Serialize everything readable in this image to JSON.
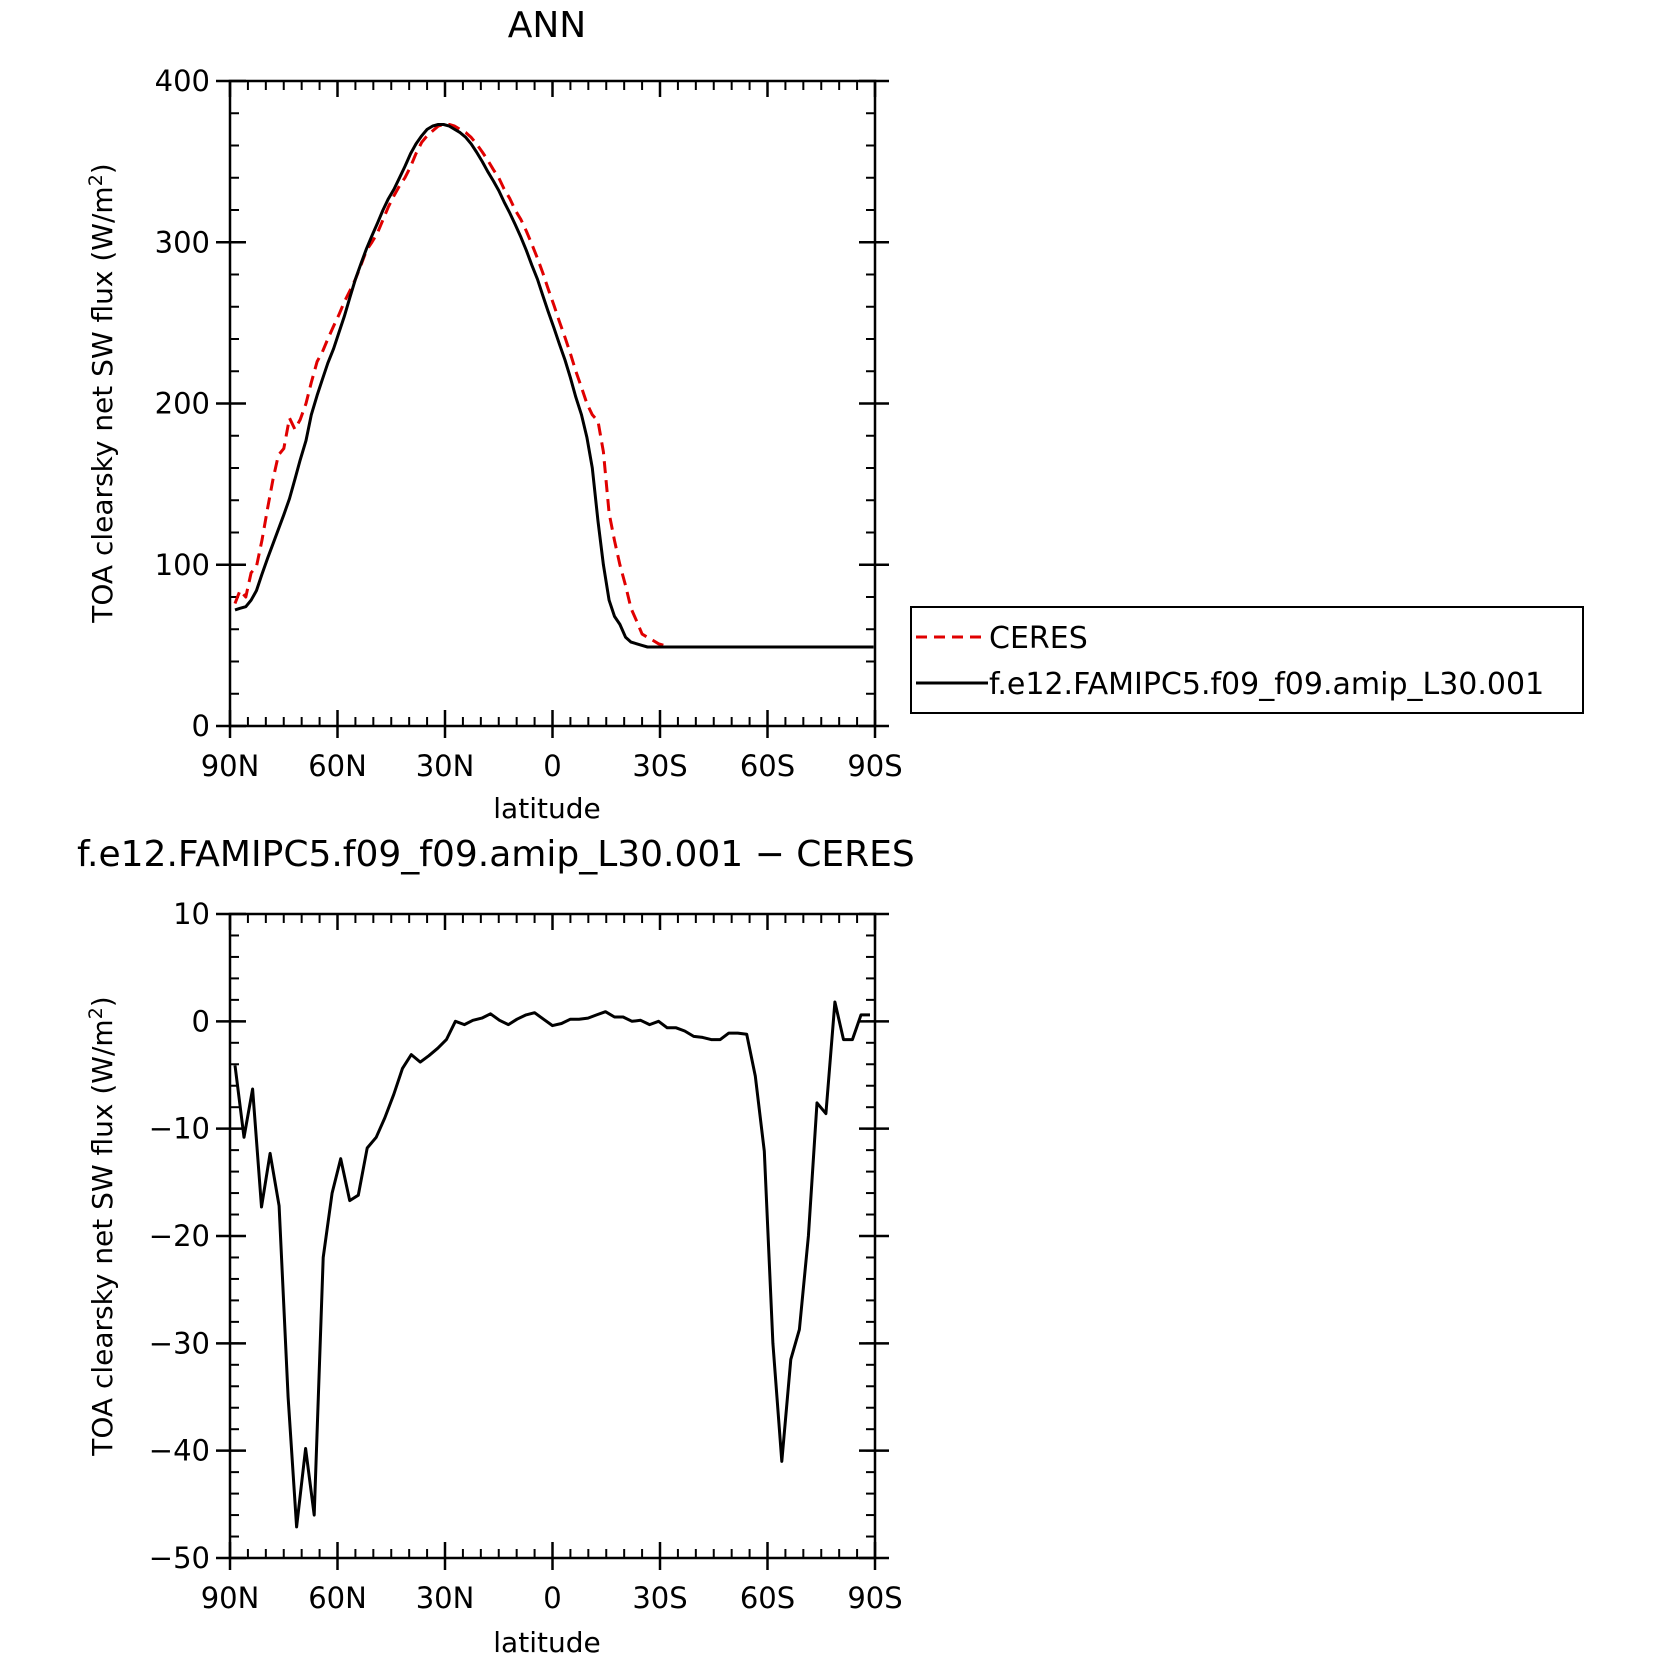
{
  "chart_data": [
    {
      "type": "line",
      "title": "ANN",
      "xlabel": "latitude",
      "ylabel_main": "TOA clearsky net SW flux (W/m",
      "ylabel_sup": "2",
      "ylabel_close": ")",
      "xlim": [
        90,
        -90
      ],
      "ylim": [
        0,
        400
      ],
      "x_ticks": [
        90,
        60,
        30,
        0,
        -30,
        -60,
        -90
      ],
      "x_tick_labels": [
        "90N",
        "60N",
        "30N",
        "0",
        "30S",
        "60S",
        "90S"
      ],
      "y_ticks": [
        0,
        100,
        200,
        300,
        400
      ],
      "y_tick_labels": [
        "0",
        "100",
        "200",
        "300",
        "400"
      ],
      "legend": {
        "placement": "right",
        "entries": [
          "CERES",
          "f.e12.FAMIPC5.f09_f09.amip_L30.001"
        ]
      },
      "series": [
        {
          "name": "CERES",
          "color": "#e00000",
          "dash": "dashed",
          "x": [
            88.6,
            87.2,
            85.6,
            84.1,
            82.6,
            81.1,
            79.5,
            78.0,
            76.5,
            75.0,
            73.4,
            71.9,
            70.4,
            68.8,
            67.3,
            65.7,
            64.2,
            62.7,
            61.1,
            59.6,
            58.1,
            56.5,
            55.0,
            53.4,
            51.9,
            50.4,
            48.8,
            47.3,
            45.8,
            44.2,
            42.7,
            41.2,
            39.6,
            38.1,
            36.5,
            35.0,
            33.5,
            31.9,
            30.4,
            28.8,
            27.3,
            25.8,
            24.2,
            22.7,
            21.2,
            19.6,
            18.1,
            16.5,
            15.0,
            13.5,
            11.9,
            10.4,
            8.8,
            7.3,
            5.8,
            4.2,
            2.7,
            1.2,
            -0.4,
            -1.9,
            -3.5,
            -5.0,
            -6.5,
            -8.1,
            -9.6,
            -11.1,
            -12.7,
            -14.2,
            -15.8,
            -17.3,
            -18.8,
            -20.4,
            -21.9,
            -23.5,
            -25.0,
            -26.5,
            -28.1,
            -29.6,
            -31.1,
            -32.7,
            -34.2,
            -35.8,
            -37.3,
            -38.8,
            -40.4,
            -41.9,
            -43.5,
            -45.0,
            -46.5,
            -48.1,
            -49.6,
            -51.2,
            -52.7,
            -54.2,
            -55.8,
            -57.3,
            -58.8,
            -60.4,
            -61.9,
            -63.5,
            -65.0,
            -66.5,
            -68.1,
            -69.6,
            -71.2,
            -72.7,
            -74.2,
            -75.8,
            -77.3,
            -78.8,
            -80.4,
            -81.9,
            -83.5,
            -85.0,
            -86.5,
            -88.1,
            -89.6
          ],
          "y": [
            76,
            84,
            80,
            95,
            99,
            115,
            135,
            153,
            168,
            172,
            191,
            184,
            190,
            200,
            213,
            226,
            232,
            240,
            248,
            255,
            263,
            270,
            277,
            286,
            295,
            300,
            306,
            314,
            322,
            329,
            335,
            340,
            347,
            355,
            362,
            366,
            369,
            372,
            373,
            373,
            372,
            370,
            368,
            365,
            361,
            356,
            351,
            345,
            340,
            333,
            327,
            320,
            314,
            307,
            299,
            290,
            281,
            271,
            261,
            251,
            241,
            231,
            220,
            210,
            200,
            193,
            189,
            170,
            132,
            115,
            100,
            87,
            73,
            65,
            57,
            55,
            53,
            51,
            50,
            49,
            49,
            49,
            49,
            49,
            49,
            49,
            49,
            49,
            49,
            49,
            49,
            49,
            49,
            49,
            49,
            49,
            49,
            49,
            49,
            49,
            49,
            49,
            49,
            49,
            49,
            49,
            49,
            49,
            49,
            49,
            49,
            49,
            49,
            49,
            49,
            49,
            49
          ]
        },
        {
          "name": "f.e12.FAMIPC5.f09_f09.amip_L30.001",
          "color": "#000000",
          "dash": "solid",
          "x": [
            88.6,
            87.2,
            85.6,
            84.1,
            82.6,
            81.1,
            79.5,
            78.0,
            76.5,
            75.0,
            73.4,
            71.9,
            70.4,
            68.8,
            67.3,
            65.7,
            64.2,
            62.7,
            61.1,
            59.6,
            58.1,
            56.5,
            55.0,
            53.4,
            51.9,
            50.4,
            48.8,
            47.3,
            45.8,
            44.2,
            42.7,
            41.2,
            39.6,
            38.1,
            36.5,
            35.0,
            33.5,
            31.9,
            30.4,
            28.8,
            27.3,
            25.8,
            24.2,
            22.7,
            21.2,
            19.6,
            18.1,
            16.5,
            15.0,
            13.5,
            11.9,
            10.4,
            8.8,
            7.3,
            5.8,
            4.2,
            2.7,
            1.2,
            -0.4,
            -1.9,
            -3.5,
            -5.0,
            -6.5,
            -8.1,
            -9.6,
            -11.1,
            -12.7,
            -14.2,
            -15.8,
            -17.3,
            -18.8,
            -20.4,
            -21.9,
            -23.5,
            -25.0,
            -26.5,
            -28.1,
            -29.6,
            -31.1,
            -32.7,
            -34.2,
            -35.8,
            -37.3,
            -38.8,
            -40.4,
            -41.9,
            -43.5,
            -45.0,
            -46.5,
            -48.1,
            -49.6,
            -51.2,
            -52.7,
            -54.2,
            -55.8,
            -57.3,
            -58.8,
            -60.4,
            -61.9,
            -63.5,
            -65.0,
            -66.5,
            -68.1,
            -69.6,
            -71.2,
            -72.7,
            -74.2,
            -75.8,
            -77.3,
            -78.8,
            -80.4,
            -81.9,
            -83.5,
            -85.0,
            -86.5,
            -88.1,
            -89.6
          ],
          "y": [
            72,
            73,
            74,
            78,
            84,
            94,
            104,
            113,
            122,
            131,
            141,
            153,
            165,
            177,
            193,
            205,
            215,
            225,
            234,
            244,
            254,
            266,
            277,
            287,
            296,
            304,
            312,
            320,
            327,
            333,
            340,
            347,
            355,
            361,
            366,
            370,
            372,
            373,
            373,
            372,
            370,
            368,
            365,
            361,
            356,
            350,
            344,
            338,
            332,
            325,
            318,
            311,
            303,
            295,
            286,
            277,
            267,
            257,
            247,
            237,
            227,
            216,
            204,
            193,
            179,
            160,
            127,
            100,
            78,
            68,
            63,
            55,
            52,
            51,
            50,
            49,
            49,
            49,
            49,
            49,
            49,
            49,
            49,
            49,
            49,
            49,
            49,
            49,
            49,
            49,
            49,
            49,
            49,
            49,
            49,
            49,
            49,
            49,
            49,
            49,
            49,
            49,
            49,
            49,
            49,
            49,
            49,
            49,
            49,
            49,
            49,
            49,
            49,
            49,
            49,
            49,
            49
          ]
        }
      ]
    },
    {
      "type": "line",
      "title": "f.e12.FAMIPC5.f09_f09.amip_L30.001 − CERES",
      "xlabel": "latitude",
      "ylabel_main": "TOA clearsky net SW flux (W/m",
      "ylabel_sup": "2",
      "ylabel_close": ")",
      "xlim": [
        90,
        -90
      ],
      "ylim": [
        -50,
        10
      ],
      "x_ticks": [
        90,
        60,
        30,
        0,
        -30,
        -60,
        -90
      ],
      "x_tick_labels": [
        "90N",
        "60N",
        "30N",
        "0",
        "30S",
        "60S",
        "90S"
      ],
      "y_ticks": [
        -50,
        -40,
        -30,
        -20,
        -10,
        0,
        10
      ],
      "y_tick_labels": [
        "−50",
        "−40",
        "−30",
        "−20",
        "−10",
        "0",
        "10"
      ],
      "series": [
        {
          "color": "#000000",
          "dash": "solid",
          "x": [
            88.6,
            86.1,
            83.7,
            81.2,
            78.8,
            76.3,
            73.8,
            71.4,
            68.9,
            66.5,
            64.0,
            61.5,
            59.1,
            56.6,
            54.2,
            51.7,
            49.2,
            46.8,
            44.3,
            41.9,
            39.4,
            36.9,
            34.5,
            32.0,
            29.6,
            27.1,
            24.6,
            22.2,
            19.7,
            17.3,
            14.8,
            12.3,
            9.9,
            7.4,
            5.0,
            2.5,
            0.0,
            -2.5,
            -5.0,
            -7.4,
            -9.9,
            -12.3,
            -14.8,
            -17.3,
            -19.7,
            -22.2,
            -24.6,
            -27.1,
            -29.6,
            -32.0,
            -34.5,
            -36.9,
            -39.4,
            -41.9,
            -44.3,
            -46.8,
            -49.2,
            -51.7,
            -54.2,
            -56.6,
            -59.1,
            -61.5,
            -64.0,
            -66.5,
            -68.9,
            -71.4,
            -73.8,
            -76.3,
            -78.8,
            -81.2,
            -83.7,
            -86.1,
            -88.6
          ],
          "y": [
            -4.1,
            -10.8,
            -6.3,
            -17.3,
            -12.3,
            -17.2,
            -35.0,
            -47.1,
            -39.8,
            -46.0,
            -22.0,
            -16.0,
            -12.8,
            -16.7,
            -16.2,
            -11.8,
            -10.8,
            -9.0,
            -6.8,
            -4.4,
            -3.1,
            -3.8,
            -3.2,
            -2.5,
            -1.7,
            0.0,
            -0.3,
            0.1,
            0.3,
            0.7,
            0.1,
            -0.3,
            0.2,
            0.6,
            0.8,
            0.2,
            -0.4,
            -0.2,
            0.2,
            0.2,
            0.3,
            0.6,
            0.9,
            0.4,
            0.4,
            0.0,
            0.1,
            -0.3,
            0.0,
            -0.6,
            -0.6,
            -0.9,
            -1.4,
            -1.5,
            -1.7,
            -1.7,
            -1.1,
            -1.1,
            -1.2,
            -5.1,
            -12.1,
            -30.0,
            -41.0,
            -31.5,
            -28.7,
            -20.0,
            -7.6,
            -8.6,
            1.8,
            -1.7,
            -1.7,
            0.6,
            0.6
          ]
        }
      ]
    }
  ]
}
